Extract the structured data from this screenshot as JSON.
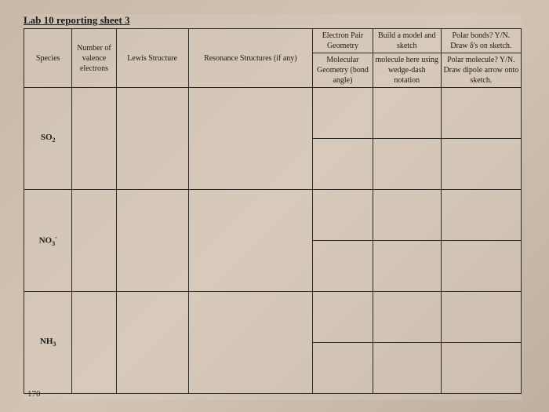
{
  "title": "Lab 10 reporting sheet 3",
  "page_number": "170",
  "headers": {
    "species": "Species",
    "valence": "Number of valence electrons",
    "lewis": "Lewis Structure",
    "resonance": "Resonance Structures (if any)",
    "geom_top": "Electron Pair Geometry",
    "geom_bottom": "Molecular Geometry (bond angle)",
    "model_top": "Build a model and sketch",
    "model_bottom": "molecule here using wedge-dash notation",
    "polar_top": "Polar bonds? Y/N. Draw δ's on sketch.",
    "polar_bottom": "Polar molecule? Y/N. Draw dipole arrow onto sketch."
  },
  "species": [
    {
      "name": "SO",
      "sub": "2"
    },
    {
      "name": "NO",
      "sub": "3",
      "sup": "-"
    },
    {
      "name": "NH",
      "sub": "3"
    }
  ],
  "colors": {
    "border": "#2a2a2a",
    "text": "#1a1a1a",
    "bg": "#d4c4b4"
  }
}
